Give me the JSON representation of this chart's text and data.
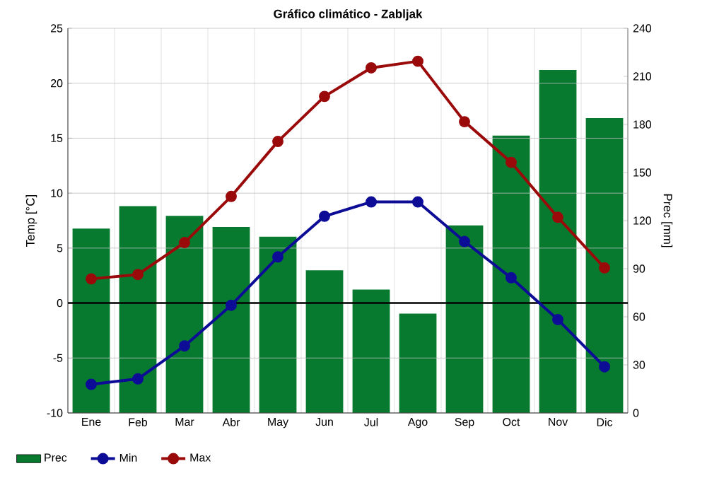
{
  "chart_data": {
    "type": "bar",
    "title": "Gráfico climático - Zabljak",
    "ylabel": "Temp [°C]",
    "y2label": "Prec [mm]",
    "categories": [
      "Ene",
      "Feb",
      "Mar",
      "Abr",
      "May",
      "Jun",
      "Jul",
      "Ago",
      "Sep",
      "Oct",
      "Nov",
      "Dic"
    ],
    "series": [
      {
        "name": "Prec",
        "axis": "y2",
        "color": "#087a2f",
        "values": [
          115,
          129,
          123,
          116,
          110,
          89,
          77,
          62,
          117,
          173,
          214,
          184
        ]
      },
      {
        "name": "Min",
        "type": "line",
        "color": "#0c0c96",
        "values": [
          -7.4,
          -6.9,
          -3.9,
          -0.2,
          4.2,
          7.9,
          9.2,
          9.2,
          5.6,
          2.3,
          -1.5,
          -5.8
        ]
      },
      {
        "name": "Max",
        "type": "line",
        "color": "#9a0a0a",
        "values": [
          2.2,
          2.6,
          5.5,
          9.7,
          14.7,
          18.8,
          21.4,
          22.0,
          16.5,
          12.8,
          7.8,
          3.2
        ]
      }
    ],
    "ylim": [
      -10,
      25
    ],
    "yticks": [
      -10,
      -5,
      0,
      5,
      10,
      15,
      20,
      25
    ],
    "y2lim": [
      0,
      240
    ],
    "y2ticks": [
      0,
      30,
      60,
      90,
      120,
      150,
      180,
      210,
      240
    ],
    "ref_lines": [
      {
        "axis": "y",
        "value": 0,
        "color": "#000000"
      }
    ],
    "grid": true,
    "legend": "bottom left",
    "marker": "circle",
    "line_style": "solid"
  }
}
